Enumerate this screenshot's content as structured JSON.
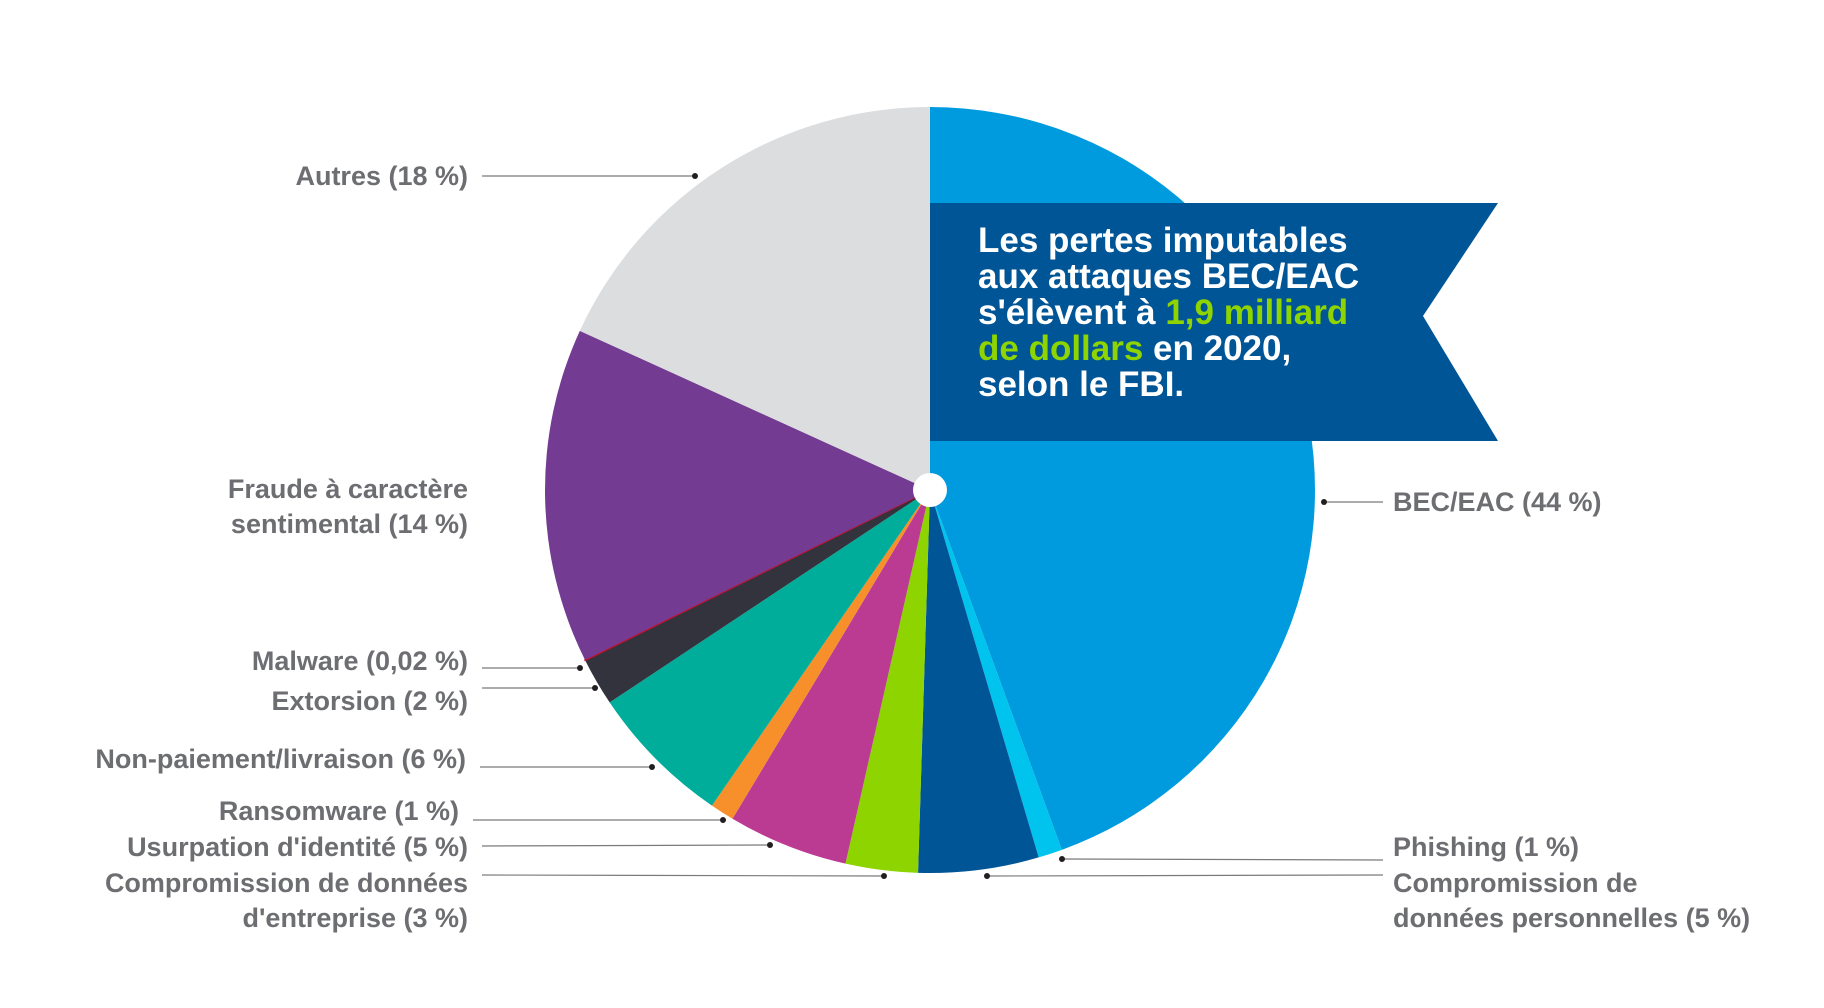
{
  "chart_data": {
    "type": "pie",
    "title": "",
    "slices": [
      {
        "label": "BEC/EAC (44 %)",
        "value": 44,
        "color": "#009ade"
      },
      {
        "label": "Phishing (1 %)",
        "value": 1,
        "color": "#00c3ee"
      },
      {
        "label": "Compromission de données personnelles (5 %)",
        "label_lines": [
          "Compromission de",
          "données personnelles (5 %)"
        ],
        "value": 5,
        "color": "#005596"
      },
      {
        "label": "Compromission de données d'entreprise (3 %)",
        "label_lines": [
          "Compromission de données",
          "d'entreprise (3 %)"
        ],
        "value": 3,
        "color": "#8dd400"
      },
      {
        "label": "Usurpation d'identité (5 %)",
        "value": 5,
        "color": "#bb3a92"
      },
      {
        "label": "Ransomware (1 %)",
        "value": 1,
        "color": "#f7902a"
      },
      {
        "label": "Non-paiement/livraison (6 %)",
        "value": 6,
        "color": "#00ad9a"
      },
      {
        "label": "Extorsion (2 %)",
        "value": 2,
        "color": "#32333d"
      },
      {
        "label": "Malware (0,02 %)",
        "value": 0.02,
        "color": "#c8102e"
      },
      {
        "label": "Fraude à caractère sentimental (14 %)",
        "label_lines": [
          "Fraude à caractère",
          "sentimental (14 %)"
        ],
        "value": 14,
        "color": "#743b93"
      },
      {
        "label": "Autres (18 %)",
        "value": 18,
        "color": "#dcdddf"
      }
    ],
    "start_angle_deg": 0,
    "direction": "clockwise"
  },
  "banner": {
    "lines": [
      {
        "parts": [
          {
            "text": "Les pertes imputables",
            "highlight": false
          }
        ]
      },
      {
        "parts": [
          {
            "text": "aux attaques BEC/EAC",
            "highlight": false
          }
        ]
      },
      {
        "parts": [
          {
            "text": "s'élèvent à ",
            "highlight": false
          },
          {
            "text": "1,9 milliard",
            "highlight": true
          }
        ]
      },
      {
        "parts": [
          {
            "text": "de dollars",
            "highlight": true
          },
          {
            "text": " en 2020,",
            "highlight": false
          }
        ]
      },
      {
        "parts": [
          {
            "text": "selon le FBI.",
            "highlight": false
          }
        ]
      }
    ],
    "bg_color": "#005596",
    "highlight_color": "#8dd400"
  }
}
